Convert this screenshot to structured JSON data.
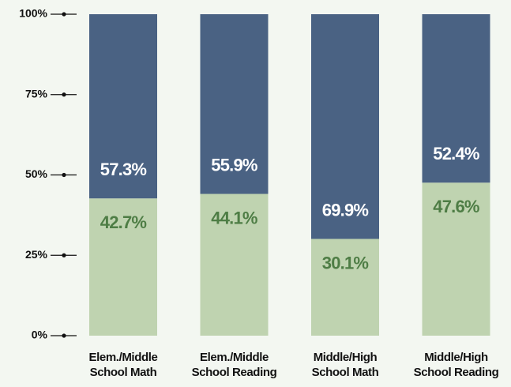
{
  "chart_data": {
    "type": "stacked_bar",
    "categories": [
      "Elem./Middle School Math",
      "Elem./Middle School Reading",
      "Middle/High School Math",
      "Middle/High School Reading"
    ],
    "series": [
      {
        "color": "#bfd3b0",
        "label_color": "#4e7d45",
        "values": [
          42.7,
          44.1,
          30.1,
          47.6
        ],
        "value_labels": [
          "42.7%",
          "44.1%",
          "30.1%",
          "47.6%"
        ]
      },
      {
        "color": "#4a6283",
        "label_color": "#ffffff",
        "values": [
          57.3,
          55.9,
          69.9,
          52.4
        ],
        "value_labels": [
          "57.3%",
          "55.9%",
          "69.9%",
          "52.4%"
        ]
      }
    ],
    "ylim": [
      0,
      100
    ],
    "yticks": [
      {
        "value": 0,
        "label": "0%"
      },
      {
        "value": 25,
        "label": "25%"
      },
      {
        "value": 50,
        "label": "50%"
      },
      {
        "value": 75,
        "label": "75%"
      },
      {
        "value": 100,
        "label": "100%"
      }
    ]
  }
}
